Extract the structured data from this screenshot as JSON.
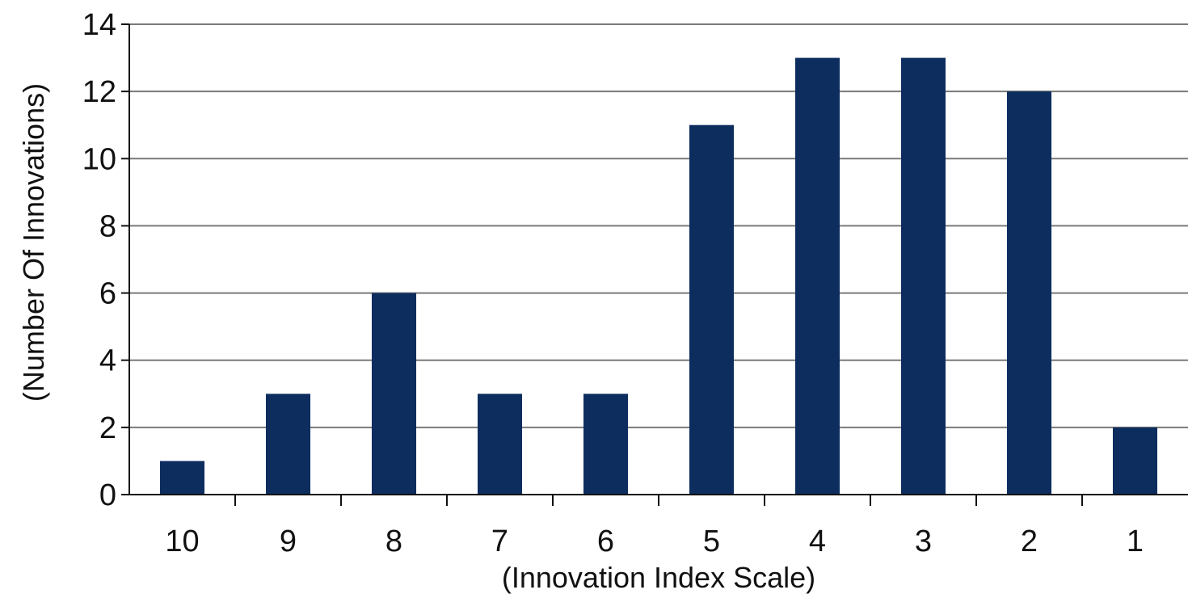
{
  "chart_data": {
    "type": "bar",
    "title": "",
    "xlabel": "(Innovation Index Scale)",
    "ylabel": "(Number Of Innovations)",
    "categories": [
      "10",
      "9",
      "8",
      "7",
      "6",
      "5",
      "4",
      "3",
      "2",
      "1"
    ],
    "values": [
      1,
      3,
      6,
      3,
      3,
      11,
      13,
      13,
      12,
      2
    ],
    "ylim": [
      0,
      14
    ],
    "yticks": [
      0,
      2,
      4,
      6,
      8,
      10,
      12,
      14
    ],
    "grid": true,
    "legend": "none",
    "colors": {
      "bar": "#0d2d5f",
      "grid": "#7a7a7a",
      "axis": "#111111"
    }
  }
}
